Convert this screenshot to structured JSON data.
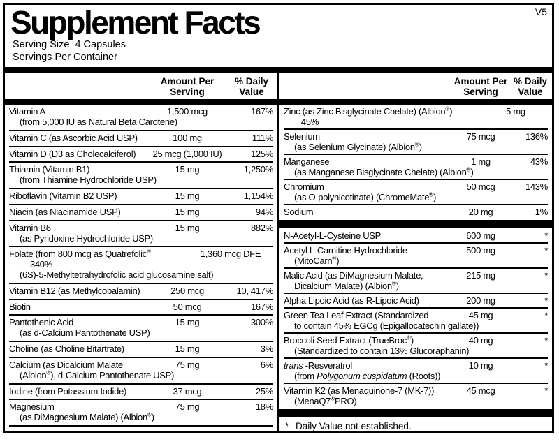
{
  "version": "V5",
  "title": "Supplement Facts",
  "serving": {
    "size_line": "Serving Size  4 Capsules",
    "per_container_line": "Servings Per Container"
  },
  "headers": {
    "amount": "Amount Per\nServing",
    "dv": "% Daily\nValue"
  },
  "colors": {
    "text": "#000000",
    "background": "#ffffff"
  },
  "left_rows": [
    {
      "name": "Vitamin A",
      "sub": "(from 5,000 IU as Natural Beta Carotene)",
      "amount": "1,500 mcg",
      "dv": "167%"
    },
    {
      "name": "Vitamin C (as Ascorbic Acid USP)",
      "amount": "100 mg",
      "dv": "111%"
    },
    {
      "name": "Vitamin D (D3 as Cholecalciferol)",
      "amount": "25 mcg (1,000 IU)",
      "dv": "125%"
    },
    {
      "name": "Thiamin (Vitamin B1)",
      "sub": "(from Thiamine Hydrochloride USP)",
      "amount": "15 mg",
      "dv": "1,250%"
    },
    {
      "name": "Riboflavin (Vitamin B2 USP)",
      "amount": "15 mg",
      "dv": "1,154%"
    },
    {
      "name": "Niacin (as Niacinamide USP)",
      "amount": "15 mg",
      "dv": "94%"
    },
    {
      "name": "Vitamin B6",
      "sub": "(as Pyridoxine Hydrochloride USP)",
      "amount": "15 mg",
      "dv": "882%"
    },
    {
      "name": "Folate (from 800 mcg as Quatrefolic®",
      "sub": "(6S)-5-Methyltetrahydrofolic acid glucosamine salt)",
      "amount": "1,360 mcg DFE",
      "dv": "340%"
    },
    {
      "name": "Vitamin B12 (as Methylcobalamin)",
      "amount": "250 mcg",
      "dv": "10, 417%"
    },
    {
      "name": "Biotin",
      "amount": "50 mcg",
      "dv": "167%"
    },
    {
      "name": "Pantothenic Acid",
      "sub": "(as d-Calcium Pantothenate USP)",
      "amount": "15 mg",
      "dv": "300%"
    },
    {
      "name": "Choline (as Choline Bitartrate)",
      "amount": "15 mg",
      "dv": "3%"
    },
    {
      "name": "Calcium (as Dicalcium Malate",
      "sub": "(Albion®), d-Calcium Pantothenate USP)",
      "amount": "75 mg",
      "dv": "6%"
    },
    {
      "name": "Iodine (from Potassium Iodide)",
      "amount": "37 mcg",
      "dv": "25%"
    },
    {
      "name": "Magnesium",
      "sub": "(as DiMagnesium Malate) (Albion®)",
      "amount": "75 mg",
      "dv": "18%"
    }
  ],
  "right_rows": [
    {
      "name": "Zinc (as Zinc Bisglycinate Chelate) (Albion®)",
      "amount": "5 mg",
      "dv": "45%"
    },
    {
      "name": "Selenium",
      "sub": "(as Selenium Glycinate) (Albion®)",
      "amount": "75 mcg",
      "dv": "136%"
    },
    {
      "name": "Manganese",
      "sub": "(as Manganese Bisglycinate Chelate) (Albion®)",
      "amount": "1 mg",
      "dv": "43%"
    },
    {
      "name": "Chromium",
      "sub": "(as O-polynicotinate) (ChromeMate®)",
      "amount": "50 mcg",
      "dv": "143%"
    },
    {
      "name": "Sodium",
      "amount": "20 mg",
      "dv": "1%"
    },
    {
      "type": "bar"
    },
    {
      "name": "N-Acetyl-L-Cysteine USP",
      "amount": "600 mg",
      "dv": "*"
    },
    {
      "name": "Acetyl L-Carnitine Hydrochloride",
      "sub": "(MitoCarn®)",
      "amount": "500 mg",
      "dv": "*"
    },
    {
      "name": "Malic Acid (as DiMagnesium Malate,",
      "sub": "Dicalcium Malate) (Albion®)",
      "amount": "215 mg",
      "dv": "*"
    },
    {
      "name": "Alpha Lipoic Acid (as R-Lipoic Acid)",
      "amount": "200 mg",
      "dv": "*"
    },
    {
      "name": "Green Tea Leaf Extract (Standardized",
      "sub": "to contain 45% EGCg (Epigallocatechin gallate))",
      "amount": "45 mg",
      "dv": "*"
    },
    {
      "name": "Broccoli Seed Extract (TrueBroc®)",
      "sub": "(Standardized to contain 13% Glucoraphanin)",
      "amount": "40 mg",
      "dv": "*"
    },
    {
      "name_parts": [
        {
          "t": "trans ",
          "i": true
        },
        {
          "t": "-Resveratrol",
          "i": false
        }
      ],
      "sub_parts": [
        {
          "t": "(from ",
          "i": false
        },
        {
          "t": "Polygonum cuspidatum",
          "i": true
        },
        {
          "t": " (Roots))",
          "i": false
        }
      ],
      "amount": "10 mg",
      "dv": "*"
    },
    {
      "name": "Vitamin K2 (as Menaquinone-7 (MK-7))",
      "sub": "(MenaQ7®PRO)",
      "amount": "45 mcg",
      "dv": "*"
    },
    {
      "type": "bar"
    },
    {
      "type": "footnote",
      "marker": "*",
      "text": "Daily Value not established."
    }
  ]
}
